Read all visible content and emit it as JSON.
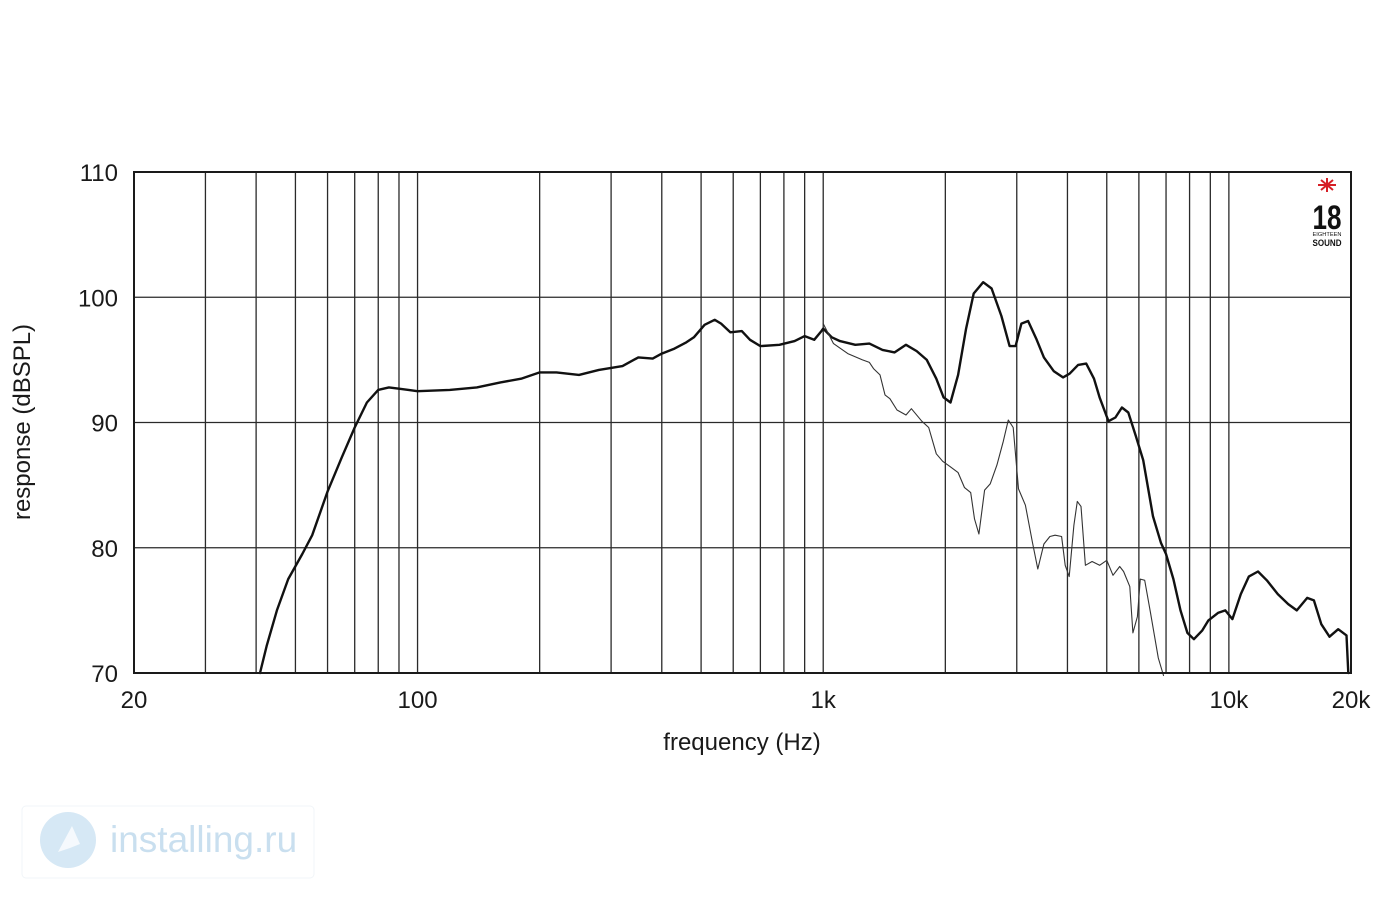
{
  "chart_data": {
    "type": "line",
    "xlabel": "frequency (Hz)",
    "ylabel": "response (dBSPL)",
    "xscale": "log",
    "xlim": [
      20,
      20000
    ],
    "ylim": [
      70,
      110
    ],
    "grid": true,
    "x_tick_labels": [
      {
        "value": 20,
        "label": "20"
      },
      {
        "value": 100,
        "label": "100"
      },
      {
        "value": 1000,
        "label": "1k"
      },
      {
        "value": 10000,
        "label": "10k"
      },
      {
        "value": 20000,
        "label": "20k"
      }
    ],
    "y_tick_labels": [
      {
        "value": 110,
        "label": "110"
      },
      {
        "value": 100,
        "label": "100"
      },
      {
        "value": 90,
        "label": "90"
      },
      {
        "value": 80,
        "label": "80"
      },
      {
        "value": 70,
        "label": "70"
      }
    ],
    "x_gridlines": [
      30,
      40,
      50,
      60,
      70,
      80,
      90,
      100,
      200,
      300,
      400,
      500,
      600,
      700,
      800,
      900,
      1000,
      2000,
      3000,
      4000,
      5000,
      6000,
      7000,
      8000,
      9000,
      10000
    ],
    "y_gridlines": [
      80,
      90,
      100
    ],
    "series": [
      {
        "stroke": "#111111",
        "points": [
          [
            40.9,
            70
          ],
          [
            42.5,
            72.2
          ],
          [
            45,
            75
          ],
          [
            48,
            77.5
          ],
          [
            52,
            79.5
          ],
          [
            55,
            81
          ],
          [
            60,
            84.5
          ],
          [
            65,
            87.2
          ],
          [
            70,
            89.6
          ],
          [
            75,
            91.6
          ],
          [
            80,
            92.6
          ],
          [
            85,
            92.8
          ],
          [
            90,
            92.7
          ],
          [
            95,
            92.6
          ],
          [
            100,
            92.5
          ],
          [
            120,
            92.6
          ],
          [
            140,
            92.8
          ],
          [
            160,
            93.2
          ],
          [
            180,
            93.5
          ],
          [
            200,
            94.0
          ],
          [
            220,
            94.0
          ],
          [
            250,
            93.8
          ],
          [
            280,
            94.2
          ],
          [
            320,
            94.5
          ],
          [
            350,
            95.2
          ],
          [
            380,
            95.1
          ],
          [
            400,
            95.5
          ],
          [
            430,
            95.9
          ],
          [
            460,
            96.4
          ],
          [
            480,
            96.8
          ],
          [
            510,
            97.8
          ],
          [
            540,
            98.2
          ],
          [
            560,
            97.9
          ],
          [
            590,
            97.2
          ],
          [
            630,
            97.3
          ],
          [
            660,
            96.6
          ],
          [
            700,
            96.1
          ],
          [
            780,
            96.2
          ],
          [
            850,
            96.5
          ],
          [
            900,
            96.9
          ],
          [
            950,
            96.6
          ],
          [
            990,
            97.3
          ],
          [
            1000,
            97.5
          ],
          [
            1050,
            96.8
          ],
          [
            1100,
            96.5
          ],
          [
            1200,
            96.2
          ],
          [
            1300,
            96.3
          ],
          [
            1400,
            95.8
          ],
          [
            1500,
            95.6
          ],
          [
            1600,
            96.2
          ],
          [
            1700,
            95.7
          ],
          [
            1800,
            95.0
          ],
          [
            1900,
            93.5
          ],
          [
            1980,
            92.0
          ],
          [
            2060,
            91.6
          ],
          [
            2150,
            93.8
          ],
          [
            2250,
            97.5
          ],
          [
            2350,
            100.3
          ],
          [
            2480,
            101.2
          ],
          [
            2600,
            100.7
          ],
          [
            2750,
            98.5
          ],
          [
            2880,
            96.1
          ],
          [
            2980,
            96.1
          ],
          [
            3080,
            97.9
          ],
          [
            3200,
            98.1
          ],
          [
            3350,
            96.7
          ],
          [
            3500,
            95.2
          ],
          [
            3700,
            94.1
          ],
          [
            3900,
            93.6
          ],
          [
            4050,
            93.9
          ],
          [
            4250,
            94.6
          ],
          [
            4450,
            94.7
          ],
          [
            4650,
            93.5
          ],
          [
            4800,
            92.0
          ],
          [
            5050,
            90.1
          ],
          [
            5250,
            90.4
          ],
          [
            5450,
            91.2
          ],
          [
            5650,
            90.8
          ],
          [
            5900,
            88.9
          ],
          [
            6150,
            87.0
          ],
          [
            6500,
            82.5
          ],
          [
            6800,
            80.4
          ],
          [
            7000,
            79.5
          ],
          [
            7300,
            77.5
          ],
          [
            7600,
            75.0
          ],
          [
            7900,
            73.2
          ],
          [
            8200,
            72.7
          ],
          [
            8600,
            73.4
          ],
          [
            8900,
            74.2
          ],
          [
            9400,
            74.8
          ],
          [
            9800,
            75.0
          ],
          [
            10200,
            74.3
          ],
          [
            10700,
            76.3
          ],
          [
            11200,
            77.7
          ],
          [
            11800,
            78.1
          ],
          [
            12400,
            77.4
          ],
          [
            13200,
            76.3
          ],
          [
            14000,
            75.5
          ],
          [
            14700,
            75.0
          ],
          [
            15600,
            76.0
          ],
          [
            16200,
            75.8
          ],
          [
            16900,
            73.9
          ],
          [
            17700,
            72.9
          ],
          [
            18600,
            73.5
          ],
          [
            19500,
            73.0
          ],
          [
            19700,
            70.0
          ]
        ]
      },
      {
        "stroke": "#333333",
        "points": [
          [
            1000,
            97.9
          ],
          [
            1060,
            96.3
          ],
          [
            1150,
            95.5
          ],
          [
            1250,
            95.0
          ],
          [
            1300,
            94.8
          ],
          [
            1330,
            94.3
          ],
          [
            1380,
            93.8
          ],
          [
            1420,
            92.2
          ],
          [
            1460,
            91.9
          ],
          [
            1520,
            91.0
          ],
          [
            1600,
            90.6
          ],
          [
            1650,
            91.1
          ],
          [
            1750,
            90.1
          ],
          [
            1820,
            89.6
          ],
          [
            1900,
            87.5
          ],
          [
            1970,
            86.9
          ],
          [
            2050,
            86.5
          ],
          [
            2150,
            86.0
          ],
          [
            2230,
            84.8
          ],
          [
            2310,
            84.4
          ],
          [
            2360,
            82.3
          ],
          [
            2420,
            81.1
          ],
          [
            2500,
            84.6
          ],
          [
            2580,
            85.1
          ],
          [
            2680,
            86.6
          ],
          [
            2780,
            88.5
          ],
          [
            2860,
            90.2
          ],
          [
            2940,
            89.6
          ],
          [
            3030,
            84.7
          ],
          [
            3150,
            83.4
          ],
          [
            3280,
            80.4
          ],
          [
            3380,
            78.3
          ],
          [
            3500,
            80.3
          ],
          [
            3620,
            80.9
          ],
          [
            3730,
            81.0
          ],
          [
            3870,
            80.9
          ],
          [
            3950,
            78.6
          ],
          [
            4040,
            77.7
          ],
          [
            4150,
            81.8
          ],
          [
            4230,
            83.7
          ],
          [
            4320,
            83.3
          ],
          [
            4430,
            78.6
          ],
          [
            4600,
            78.9
          ],
          [
            4800,
            78.6
          ],
          [
            5000,
            79.0
          ],
          [
            5180,
            77.8
          ],
          [
            5380,
            78.5
          ],
          [
            5500,
            78.1
          ],
          [
            5700,
            76.9
          ],
          [
            5800,
            73.2
          ],
          [
            5950,
            74.5
          ],
          [
            6050,
            77.5
          ],
          [
            6200,
            77.4
          ],
          [
            6400,
            74.9
          ],
          [
            6700,
            71.2
          ],
          [
            6900,
            69.8
          ]
        ]
      }
    ]
  },
  "logo": {
    "text": "18",
    "subtitle_top": "EIGHTEEN",
    "subtitle_bottom": "SOUND",
    "accent_color": "#d61f26"
  },
  "watermark": {
    "text": "installing.ru",
    "color": "#c9dfef"
  }
}
